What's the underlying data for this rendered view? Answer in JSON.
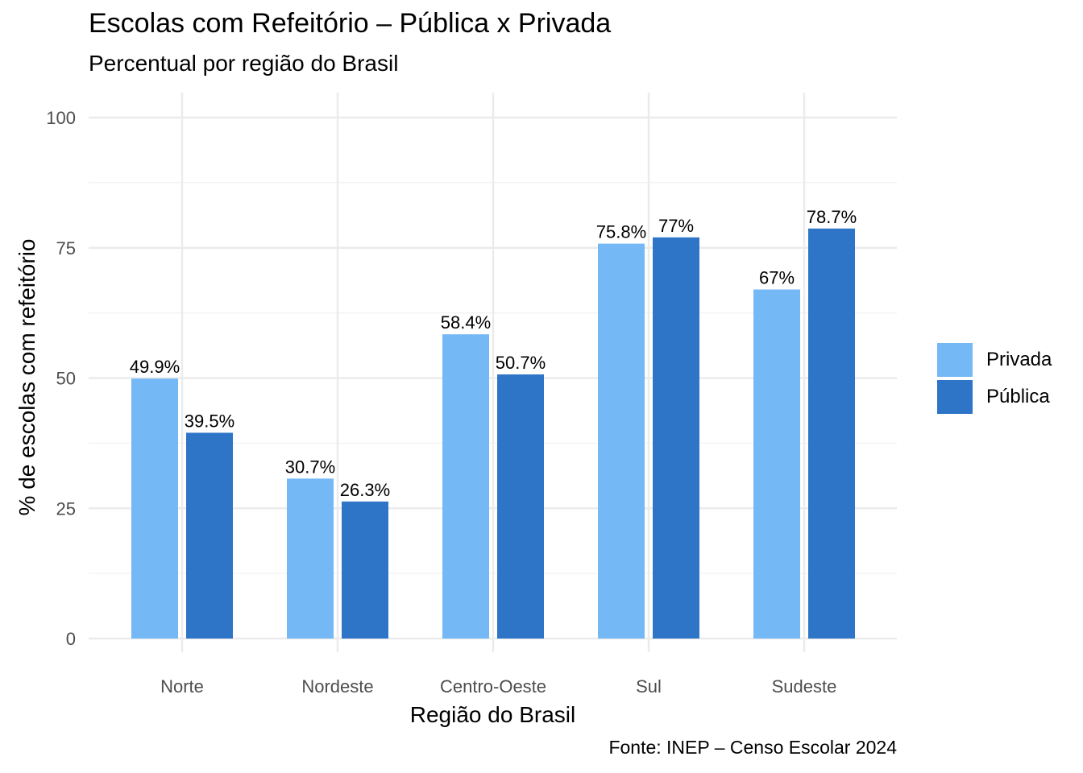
{
  "chart_data": {
    "type": "bar",
    "title": "Escolas com Refeitório – Pública x Privada",
    "subtitle": "Percentual por região do Brasil",
    "caption": "Fonte: INEP – Censo Escolar 2024",
    "xlabel": "Região do Brasil",
    "ylabel": "% de escolas com refeitório",
    "categories": [
      "Norte",
      "Nordeste",
      "Centro-Oeste",
      "Sul",
      "Sudeste"
    ],
    "ylim": [
      0,
      100
    ],
    "yticks": [
      0,
      25,
      50,
      75,
      100
    ],
    "grid": true,
    "legend_position": "right",
    "series": [
      {
        "name": "Privada",
        "color": "#74B9F5",
        "values": [
          49.9,
          30.7,
          58.4,
          75.8,
          67.0
        ],
        "labels": [
          "49.9%",
          "30.7%",
          "58.4%",
          "75.8%",
          "67%"
        ]
      },
      {
        "name": "Pública",
        "color": "#2E75C7",
        "values": [
          39.5,
          26.3,
          50.7,
          77.0,
          78.7
        ],
        "labels": [
          "39.5%",
          "26.3%",
          "50.7%",
          "77%",
          "78.7%"
        ]
      }
    ]
  }
}
